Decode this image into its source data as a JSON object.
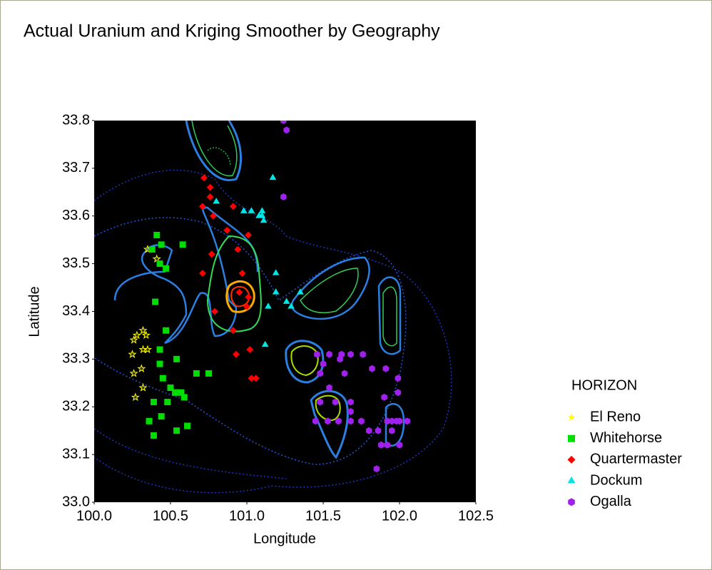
{
  "chart_data": {
    "type": "scatter",
    "title": "Actual Uranium and Kriging Smoother by Geography",
    "x_label": "Longitude",
    "y_label": "Latitude",
    "legend_title": "HORIZON",
    "xlim": [
      100.0,
      102.5
    ],
    "ylim": [
      33.0,
      33.8
    ],
    "xticks": [
      {
        "value": 100.0,
        "label": "100.0"
      },
      100.5,
      {
        "value": 101.0,
        "label": "101.0"
      },
      101.5,
      {
        "value": 102.0,
        "label": "102.0"
      },
      102.5
    ],
    "yticks": [
      {
        "value": 33.0,
        "label": "33.0"
      },
      33.1,
      33.2,
      33.3,
      33.4,
      33.5,
      33.6,
      33.7,
      33.8
    ],
    "series": [
      {
        "name": "El Reno",
        "color": "#ffff00",
        "marker": "star",
        "x": [
          100.35,
          100.41,
          100.32,
          100.34,
          100.28,
          100.26,
          100.32,
          100.35,
          100.25,
          100.31,
          100.26,
          100.32,
          100.27
        ],
        "y": [
          33.53,
          33.51,
          33.36,
          33.35,
          33.35,
          33.34,
          33.32,
          33.32,
          33.31,
          33.28,
          33.27,
          33.24,
          33.22
        ]
      },
      {
        "name": "Whitehorse",
        "color": "#00dd00",
        "marker": "square",
        "x": [
          100.41,
          100.44,
          100.38,
          100.43,
          100.47,
          100.58,
          100.4,
          100.47,
          100.43,
          100.54,
          100.43,
          100.45,
          100.39,
          100.5,
          100.53,
          100.54,
          100.57,
          100.48,
          100.59,
          100.44,
          100.36,
          100.39,
          100.54,
          100.61,
          100.67,
          100.75
        ],
        "y": [
          33.56,
          33.54,
          33.53,
          33.5,
          33.49,
          33.54,
          33.42,
          33.36,
          33.32,
          33.3,
          33.29,
          33.26,
          33.21,
          33.24,
          33.23,
          33.23,
          33.23,
          33.21,
          33.22,
          33.18,
          33.17,
          33.14,
          33.15,
          33.16,
          33.27,
          33.27
        ]
      },
      {
        "name": "Quartermaster",
        "color": "#ff0000",
        "marker": "diamond",
        "x": [
          100.72,
          100.76,
          100.76,
          100.71,
          100.78,
          100.91,
          100.87,
          101.01,
          100.94,
          100.77,
          100.71,
          100.97,
          100.95,
          101.01,
          101.0,
          100.79,
          100.91,
          100.93,
          101.02,
          101.03,
          101.06
        ],
        "y": [
          33.68,
          33.66,
          33.64,
          33.62,
          33.6,
          33.62,
          33.57,
          33.56,
          33.53,
          33.52,
          33.48,
          33.48,
          33.44,
          33.43,
          33.41,
          33.4,
          33.36,
          33.31,
          33.32,
          33.26,
          33.26
        ]
      },
      {
        "name": "Dockum",
        "color": "#00e5e5",
        "marker": "triangle",
        "x": [
          101.17,
          100.8,
          100.98,
          101.03,
          101.1,
          101.1,
          101.08,
          101.11,
          101.19,
          101.19,
          101.14,
          101.26,
          101.29,
          101.12,
          101.35
        ],
        "y": [
          33.68,
          33.63,
          33.61,
          33.61,
          33.61,
          33.6,
          33.6,
          33.59,
          33.48,
          33.44,
          33.41,
          33.42,
          33.41,
          33.33,
          33.44
        ]
      },
      {
        "name": "Ogalla",
        "color": "#a020f0",
        "marker": "hexagon",
        "x": [
          101.24,
          101.26,
          101.24,
          101.46,
          101.54,
          101.62,
          101.68,
          101.76,
          101.5,
          101.61,
          101.64,
          101.82,
          101.91,
          101.48,
          101.54,
          101.99,
          101.68,
          101.9,
          101.99,
          101.48,
          101.58,
          101.68,
          101.45,
          101.53,
          101.6,
          101.68,
          101.75,
          101.8,
          101.86,
          101.95,
          101.98,
          101.92,
          102.0,
          102.05,
          101.95,
          101.88,
          101.92,
          102.0,
          101.85
        ],
        "y": [
          33.8,
          33.78,
          33.64,
          33.31,
          33.31,
          33.31,
          33.31,
          33.31,
          33.29,
          33.3,
          33.27,
          33.28,
          33.28,
          33.27,
          33.24,
          33.26,
          33.21,
          33.22,
          33.23,
          33.21,
          33.21,
          33.19,
          33.17,
          33.17,
          33.17,
          33.17,
          33.17,
          33.15,
          33.15,
          33.17,
          33.17,
          33.17,
          33.17,
          33.17,
          33.15,
          33.12,
          33.12,
          33.12,
          33.07
        ]
      }
    ]
  }
}
